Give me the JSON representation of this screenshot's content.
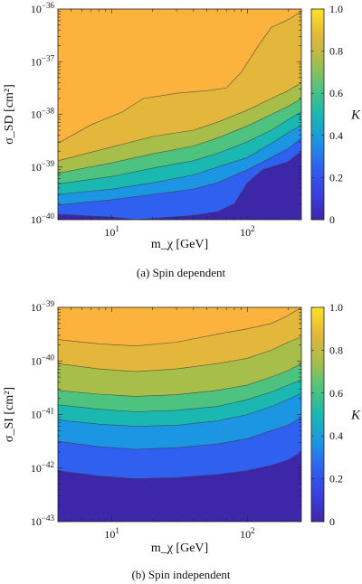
{
  "figure": {
    "colormap": [
      "#3e26a8",
      "#2f60f0",
      "#1c95e2",
      "#1ab8b0",
      "#4ec37f",
      "#a8be4a",
      "#e3b63c",
      "#fbb33d",
      "#fce224"
    ]
  },
  "chart_data": [
    {
      "type": "contour",
      "caption": "(a) Spin dependent",
      "xlabel": "m_χ [GeV]",
      "ylabel": "σ_SD [cm²]",
      "xscale": "log",
      "yscale": "log",
      "xlim": [
        4,
        250
      ],
      "ylim": [
        1e-40,
        1e-36
      ],
      "x_ticks": [
        {
          "value": 10,
          "base": "10",
          "exp": "1"
        },
        {
          "value": 100,
          "base": "10",
          "exp": "2"
        }
      ],
      "y_ticks": [
        {
          "value": 1e-40,
          "base": "10",
          "exp": "−40"
        },
        {
          "value": 1e-39,
          "base": "10",
          "exp": "−39"
        },
        {
          "value": 1e-38,
          "base": "10",
          "exp": "−38"
        },
        {
          "value": 1e-37,
          "base": "10",
          "exp": "−37"
        },
        {
          "value": 1e-36,
          "base": "10",
          "exp": "−36"
        }
      ],
      "colorbar": {
        "label": "K",
        "range": [
          0,
          1
        ],
        "ticks": [
          "0",
          "0.2",
          "0.4",
          "0.6",
          "0.8",
          "1.0"
        ]
      },
      "contour_levels": [
        0.125,
        0.25,
        0.375,
        0.5,
        0.625,
        0.75,
        0.875
      ],
      "contour_lines": [
        {
          "level": 0.125,
          "points": [
            [
              4,
              -39.9
            ],
            [
              10,
              -39.95
            ],
            [
              15,
              -40.0
            ],
            [
              40,
              -39.92
            ],
            [
              60,
              -39.85
            ],
            [
              80,
              -39.7
            ],
            [
              100,
              -39.3
            ],
            [
              130,
              -39.05
            ],
            [
              200,
              -38.9
            ],
            [
              250,
              -38.7
            ]
          ]
        },
        {
          "level": 0.25,
          "points": [
            [
              4,
              -39.72
            ],
            [
              10,
              -39.62
            ],
            [
              20,
              -39.52
            ],
            [
              40,
              -39.42
            ],
            [
              60,
              -39.3
            ],
            [
              100,
              -39.05
            ],
            [
              150,
              -38.82
            ],
            [
              200,
              -38.65
            ],
            [
              250,
              -38.45
            ]
          ]
        },
        {
          "level": 0.375,
          "points": [
            [
              4,
              -39.52
            ],
            [
              10,
              -39.42
            ],
            [
              20,
              -39.3
            ],
            [
              40,
              -39.15
            ],
            [
              60,
              -39.0
            ],
            [
              100,
              -38.82
            ],
            [
              150,
              -38.55
            ],
            [
              200,
              -38.35
            ],
            [
              250,
              -38.2
            ]
          ]
        },
        {
          "level": 0.5,
          "points": [
            [
              4,
              -39.32
            ],
            [
              10,
              -39.18
            ],
            [
              20,
              -39.02
            ],
            [
              40,
              -38.88
            ],
            [
              60,
              -38.74
            ],
            [
              100,
              -38.52
            ],
            [
              150,
              -38.3
            ],
            [
              200,
              -38.1
            ],
            [
              250,
              -37.95
            ]
          ]
        },
        {
          "level": 0.625,
          "points": [
            [
              4,
              -39.12
            ],
            [
              10,
              -38.92
            ],
            [
              20,
              -38.75
            ],
            [
              40,
              -38.6
            ],
            [
              60,
              -38.45
            ],
            [
              100,
              -38.22
            ],
            [
              150,
              -38.0
            ],
            [
              200,
              -37.85
            ],
            [
              250,
              -37.7
            ]
          ]
        },
        {
          "level": 0.75,
          "points": [
            [
              4,
              -38.88
            ],
            [
              10,
              -38.62
            ],
            [
              20,
              -38.42
            ],
            [
              40,
              -38.3
            ],
            [
              60,
              -38.15
            ],
            [
              100,
              -37.92
            ],
            [
              150,
              -37.7
            ],
            [
              200,
              -37.55
            ],
            [
              250,
              -37.4
            ]
          ]
        },
        {
          "level": 0.875,
          "points": [
            [
              4,
              -38.55
            ],
            [
              7,
              -38.2
            ],
            [
              12,
              -37.95
            ],
            [
              17,
              -37.7
            ],
            [
              30,
              -37.6
            ],
            [
              50,
              -37.55
            ],
            [
              70,
              -37.5
            ],
            [
              90,
              -37.2
            ],
            [
              120,
              -36.7
            ],
            [
              150,
              -36.35
            ],
            [
              200,
              -36.2
            ],
            [
              250,
              -36.05
            ]
          ]
        }
      ]
    },
    {
      "type": "contour",
      "caption": "(b) Spin independent",
      "xlabel": "m_χ [GeV]",
      "ylabel": "σ_SI [cm²]",
      "xscale": "log",
      "yscale": "log",
      "xlim": [
        4,
        250
      ],
      "ylim": [
        1e-43,
        1e-39
      ],
      "x_ticks": [
        {
          "value": 10,
          "base": "10",
          "exp": "1"
        },
        {
          "value": 100,
          "base": "10",
          "exp": "2"
        }
      ],
      "y_ticks": [
        {
          "value": 1e-43,
          "base": "10",
          "exp": "−43"
        },
        {
          "value": 1e-42,
          "base": "10",
          "exp": "−42"
        },
        {
          "value": 1e-41,
          "base": "10",
          "exp": "−41"
        },
        {
          "value": 1e-40,
          "base": "10",
          "exp": "−40"
        },
        {
          "value": 1e-39,
          "base": "10",
          "exp": "−39"
        }
      ],
      "colorbar": {
        "label": "K",
        "range": [
          0,
          1
        ],
        "ticks": [
          "0",
          "0.2",
          "0.4",
          "0.6",
          "0.8",
          "1.0"
        ]
      },
      "contour_levels": [
        0.125,
        0.25,
        0.375,
        0.5,
        0.625,
        0.75,
        0.875
      ],
      "contour_lines": [
        {
          "level": 0.125,
          "points": [
            [
              4,
              -42.05
            ],
            [
              8,
              -42.15
            ],
            [
              15,
              -42.2
            ],
            [
              30,
              -42.18
            ],
            [
              60,
              -42.12
            ],
            [
              100,
              -42.05
            ],
            [
              150,
              -41.95
            ],
            [
              200,
              -41.85
            ],
            [
              250,
              -41.7
            ]
          ]
        },
        {
          "level": 0.25,
          "points": [
            [
              4,
              -41.5
            ],
            [
              8,
              -41.6
            ],
            [
              15,
              -41.65
            ],
            [
              30,
              -41.62
            ],
            [
              60,
              -41.55
            ],
            [
              100,
              -41.45
            ],
            [
              150,
              -41.3
            ],
            [
              200,
              -41.2
            ],
            [
              250,
              -41.05
            ]
          ]
        },
        {
          "level": 0.375,
          "points": [
            [
              4,
              -41.1
            ],
            [
              8,
              -41.18
            ],
            [
              15,
              -41.22
            ],
            [
              30,
              -41.2
            ],
            [
              60,
              -41.12
            ],
            [
              100,
              -41.0
            ],
            [
              150,
              -40.85
            ],
            [
              200,
              -40.72
            ],
            [
              250,
              -40.6
            ]
          ]
        },
        {
          "level": 0.5,
          "points": [
            [
              4,
              -40.82
            ],
            [
              8,
              -40.9
            ],
            [
              15,
              -40.95
            ],
            [
              30,
              -40.92
            ],
            [
              60,
              -40.85
            ],
            [
              100,
              -40.72
            ],
            [
              150,
              -40.58
            ],
            [
              200,
              -40.45
            ],
            [
              250,
              -40.35
            ]
          ]
        },
        {
          "level": 0.625,
          "points": [
            [
              4,
              -40.55
            ],
            [
              8,
              -40.62
            ],
            [
              15,
              -40.66
            ],
            [
              30,
              -40.63
            ],
            [
              60,
              -40.55
            ],
            [
              100,
              -40.45
            ],
            [
              150,
              -40.3
            ],
            [
              200,
              -40.18
            ],
            [
              250,
              -40.05
            ]
          ]
        },
        {
          "level": 0.75,
          "points": [
            [
              4,
              -40.05
            ],
            [
              8,
              -40.15
            ],
            [
              15,
              -40.2
            ],
            [
              30,
              -40.15
            ],
            [
              60,
              -40.05
            ],
            [
              100,
              -39.95
            ],
            [
              150,
              -39.8
            ],
            [
              200,
              -39.65
            ],
            [
              250,
              -39.55
            ]
          ]
        },
        {
          "level": 0.875,
          "points": [
            [
              4,
              -39.6
            ],
            [
              8,
              -39.68
            ],
            [
              15,
              -39.72
            ],
            [
              30,
              -39.65
            ],
            [
              60,
              -39.5
            ],
            [
              100,
              -39.4
            ],
            [
              150,
              -39.3
            ],
            [
              200,
              -39.15
            ],
            [
              250,
              -39.0
            ]
          ]
        }
      ]
    }
  ]
}
